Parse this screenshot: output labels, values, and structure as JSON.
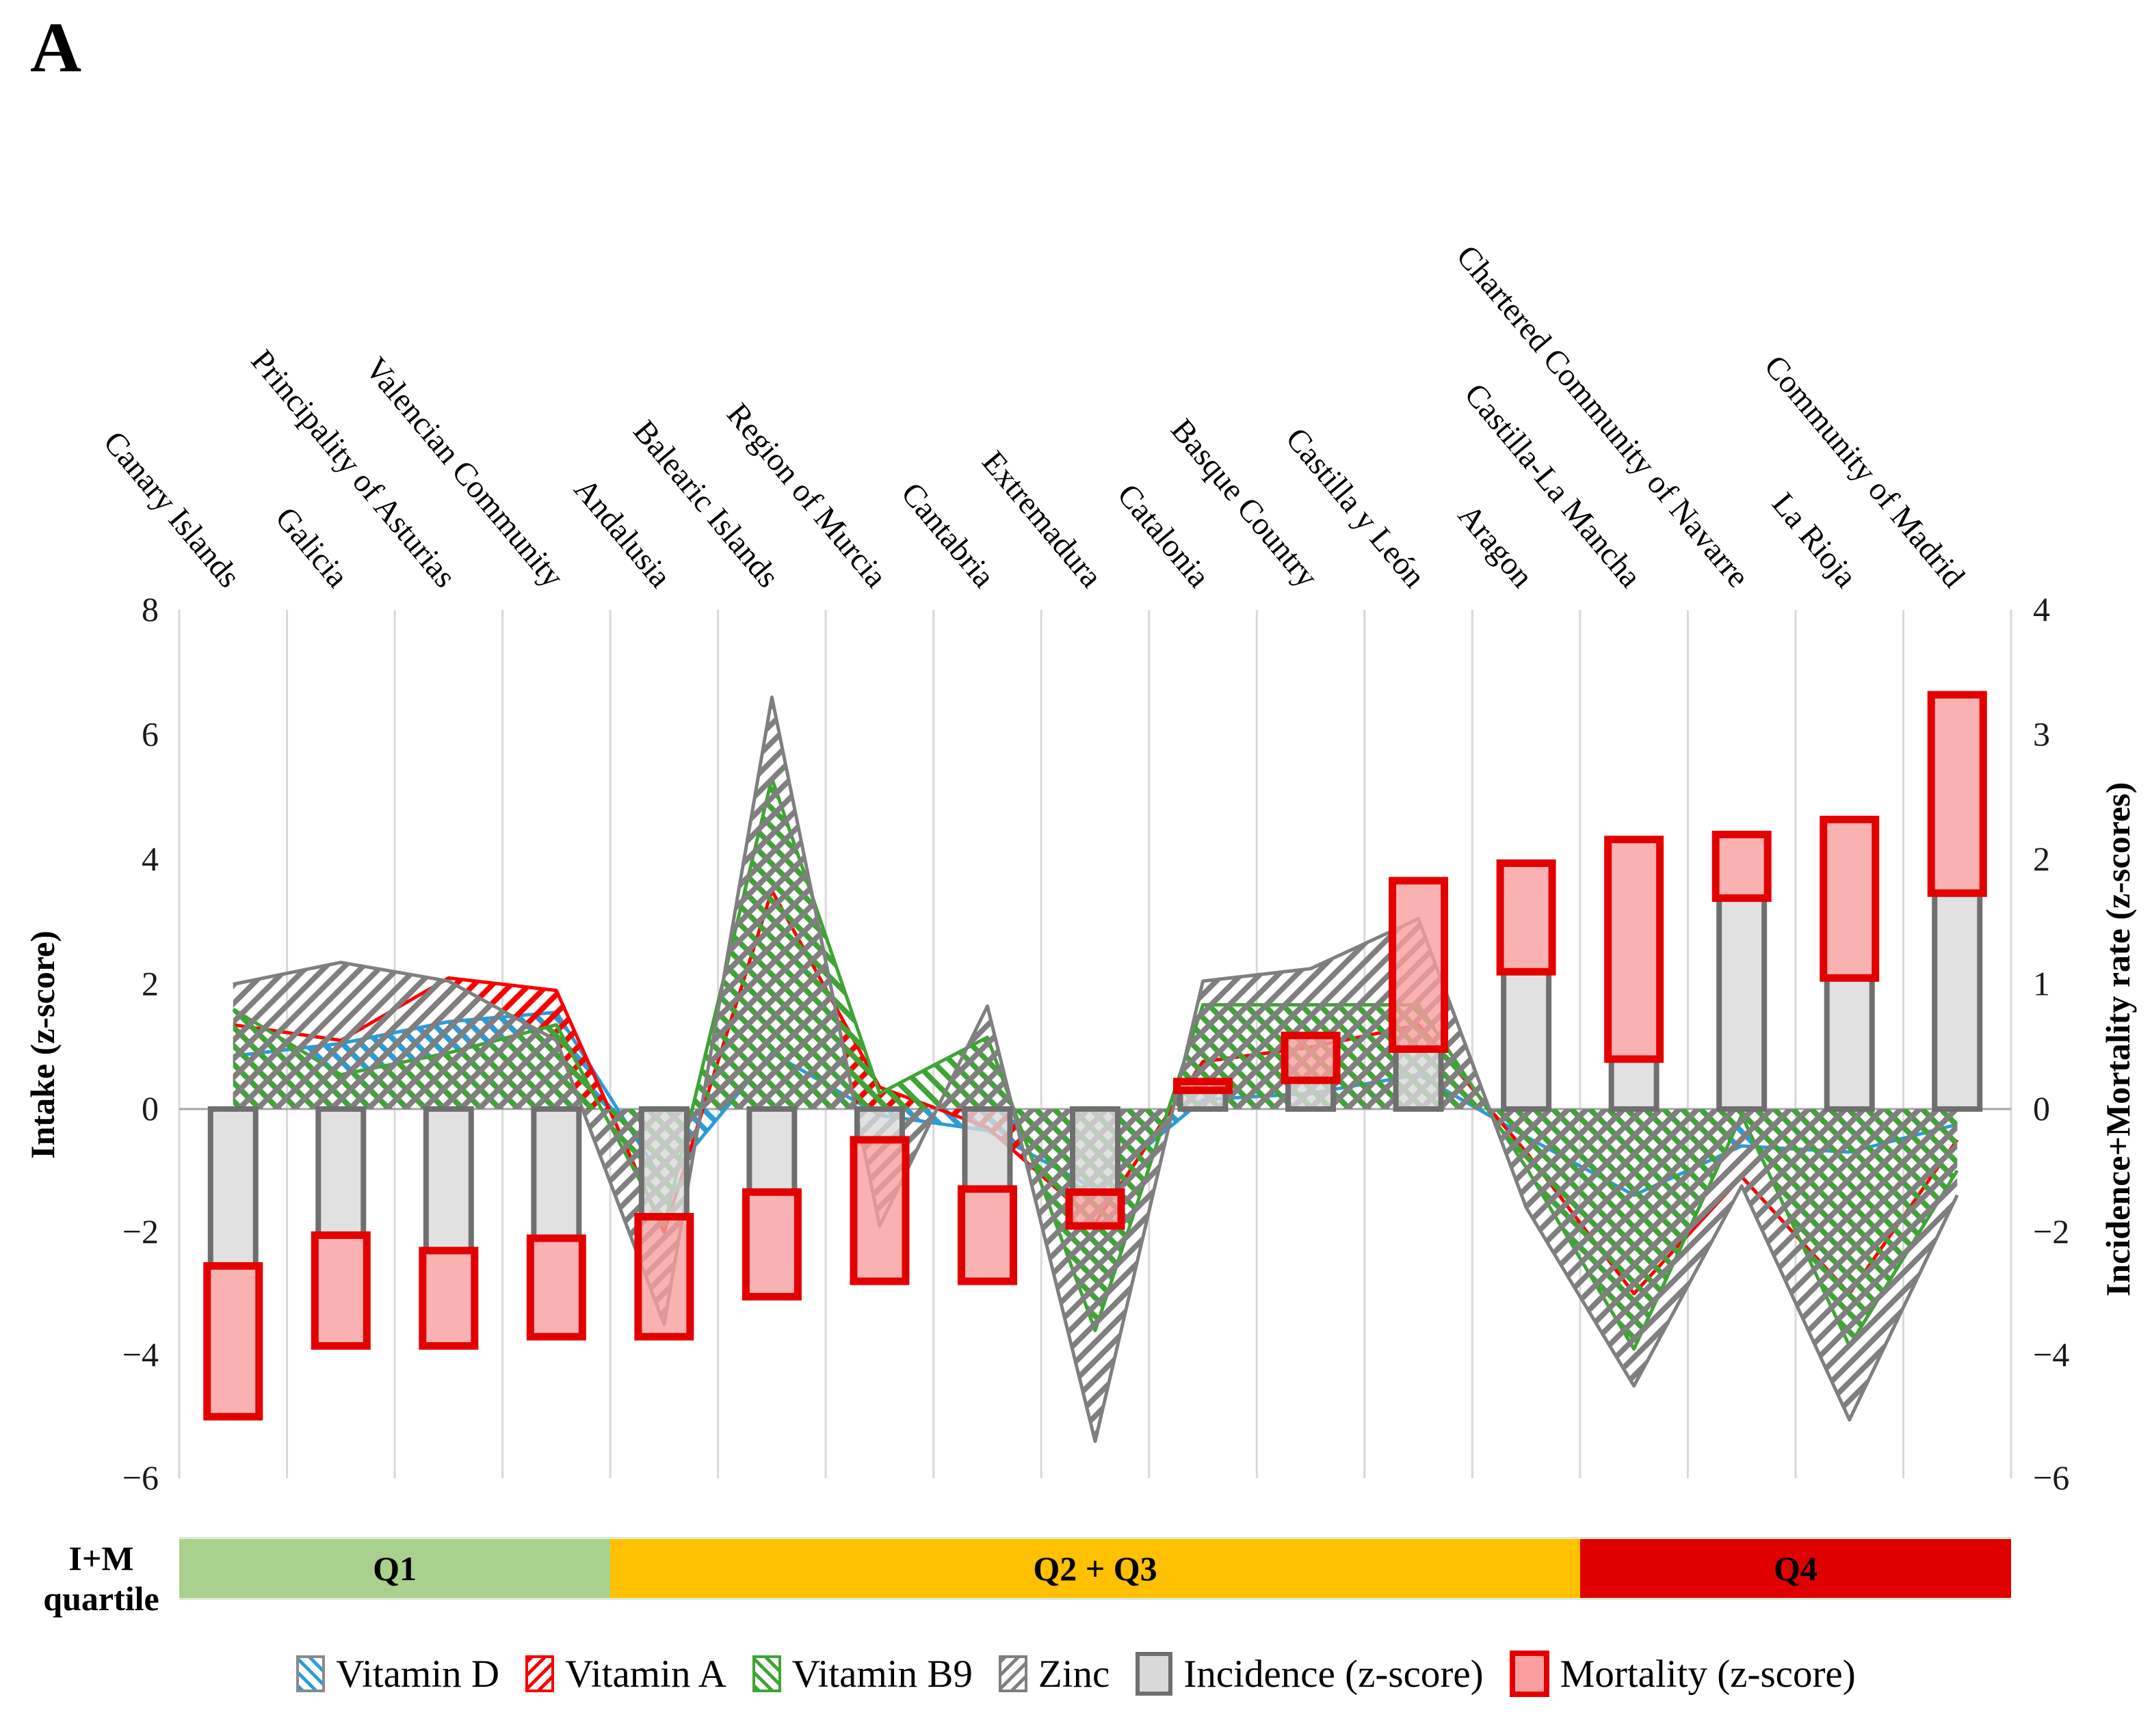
{
  "panel_label": "A",
  "axis_left": {
    "title": "Intake (z-score)",
    "ticks": [
      "8",
      "6",
      "4",
      "2",
      "0",
      "−2",
      "−4",
      "−6"
    ],
    "tick_values": [
      8,
      6,
      4,
      2,
      0,
      -2,
      -4,
      -6
    ]
  },
  "axis_right": {
    "title": "Incidence+Mortality rate (z-scores)",
    "ticks": [
      "4",
      "3",
      "2",
      "1",
      "0",
      "−2",
      "−4",
      "−6"
    ],
    "tick_values": [
      4,
      3,
      2,
      1,
      0,
      -2,
      -4,
      -6
    ]
  },
  "chart_data": {
    "type": "area+bar",
    "grid": "vertical",
    "ylim_left": [
      -6,
      8
    ],
    "ylim_right": [
      -6,
      4
    ],
    "categories": [
      "Canary Islands",
      "Galicia",
      "Principality of Asturias",
      "Valencian Community",
      "Andalusia",
      "Balearic Islands",
      "Region of Murcia",
      "Cantabria",
      "Extremadura",
      "Catalonia",
      "Basque Country",
      "Castilla y León",
      "Aragon",
      "Castilla-La Mancha",
      "Chartered Community of Navarre",
      "La Rioja",
      "Community of Madrid"
    ],
    "series": [
      {
        "name": "Vitamin D",
        "key": "vitamin-d",
        "color": "#2b9cd8",
        "hatch": "\\",
        "values": [
          0.85,
          1.05,
          1.4,
          1.55,
          -1.2,
          0.9,
          -0.1,
          -0.35,
          -1.3,
          0.15,
          0.25,
          0.55,
          -0.45,
          -1.4,
          -0.6,
          -0.7,
          -0.25
        ]
      },
      {
        "name": "Vitamin A",
        "key": "vitamin-a",
        "color": "#fb0000",
        "hatch": "/",
        "values": [
          1.35,
          1.1,
          2.1,
          1.9,
          -2.0,
          3.5,
          0.35,
          -0.3,
          -1.85,
          0.76,
          0.99,
          1.35,
          -0.7,
          -3.0,
          -1.1,
          -3.0,
          -0.5
        ]
      },
      {
        "name": "Vitamin B9",
        "key": "vitamin-b9",
        "color": "#3fa435",
        "hatch": "\\",
        "values": [
          1.6,
          0.55,
          0.9,
          1.35,
          -1.9,
          5.3,
          0.25,
          1.15,
          -3.6,
          1.67,
          1.67,
          1.67,
          -0.95,
          -3.9,
          -0.1,
          -3.85,
          -1.0
        ]
      },
      {
        "name": "Zinc",
        "key": "zinc",
        "color": "#7f7f7f",
        "hatch": "/",
        "values": [
          2.0,
          2.35,
          2.05,
          1.1,
          -3.5,
          6.6,
          -1.9,
          1.65,
          -5.4,
          2.05,
          2.25,
          3.05,
          -1.6,
          -4.5,
          -1.25,
          -5.05,
          -1.4
        ]
      }
    ],
    "bars": [
      {
        "name": "Incidence (z-score)",
        "key": "incidence",
        "axis": "right",
        "fill": "#d9d9d9",
        "border": "#6f6f6f",
        "values": [
          -2.55,
          -2.05,
          -2.3,
          -2.1,
          -1.75,
          -1.35,
          -0.5,
          -1.3,
          -1.35,
          0.15,
          0.23,
          0.48,
          1.1,
          0.4,
          1.69,
          1.05,
          1.73
        ]
      },
      {
        "name": "Mortality (z-score)",
        "key": "mortality",
        "axis": "right",
        "stacked_on": "incidence",
        "fill": "#f99e9e",
        "border": "#e30000",
        "values": [
          -2.45,
          -1.8,
          -1.55,
          -1.6,
          -1.95,
          -1.7,
          -2.3,
          -1.5,
          -0.55,
          0.07,
          0.36,
          1.35,
          0.87,
          1.76,
          0.51,
          1.27,
          1.59
        ]
      }
    ]
  },
  "quartile_band": {
    "row_label_line1": "I+M",
    "row_label_line2": "quartile",
    "segments": [
      {
        "label": "Q1",
        "color": "#a9d18e",
        "span": 4
      },
      {
        "label": "Q2 + Q3",
        "color": "#ffc000",
        "span": 9
      },
      {
        "label": "Q4",
        "color": "#e00000",
        "span": 4
      }
    ]
  },
  "legend": [
    {
      "label": "Vitamin D",
      "swatch": "hatch",
      "color": "#2b9cd8",
      "border": "#8a8a8a",
      "dir": "\\"
    },
    {
      "label": "Vitamin A",
      "swatch": "hatch",
      "color": "#fb0000",
      "border": "#fb0000",
      "dir": "/"
    },
    {
      "label": "Vitamin B9",
      "swatch": "hatch",
      "color": "#3fa435",
      "border": "#3fa435",
      "dir": "\\"
    },
    {
      "label": "Zinc",
      "swatch": "hatch",
      "color": "#7f7f7f",
      "border": "#7f7f7f",
      "dir": "/"
    },
    {
      "label": "Incidence (z-score)",
      "swatch": "solid",
      "color": "#d9d9d9",
      "border": "#6f6f6f"
    },
    {
      "label": "Mortality (z-score)",
      "swatch": "solid",
      "color": "#f99e9e",
      "border": "#e30000"
    }
  ],
  "style": {
    "gridline": "#d9d9d9",
    "zero_line": "#a6a6a6",
    "text": "#1a1a1a"
  }
}
